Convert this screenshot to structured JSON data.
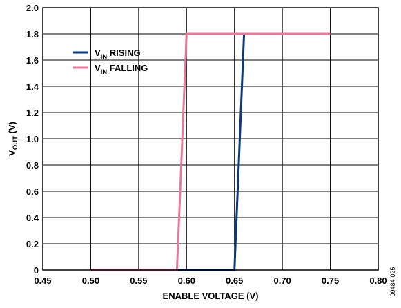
{
  "chart_data": {
    "type": "line",
    "xlabel": "ENABLE VOLTAGE (V)",
    "ylabel": {
      "main": "V",
      "sub": "OUT",
      "unit": " (V)"
    },
    "xlim": [
      0.45,
      0.8
    ],
    "ylim": [
      0,
      2.0
    ],
    "x_ticks": [
      "0.45",
      "0.50",
      "0.55",
      "0.60",
      "0.65",
      "0.70",
      "0.75",
      "0.80"
    ],
    "y_ticks": [
      "0",
      "0.2",
      "0.4",
      "0.6",
      "0.8",
      "1.0",
      "1.2",
      "1.4",
      "1.6",
      "1.8",
      "2.0"
    ],
    "grid": true,
    "legend_position": "top-left",
    "series": [
      {
        "name": "V_IN RISING",
        "label_main": "V",
        "label_sub": "IN",
        "label_rest": " RISING",
        "color": "#0a3a7a",
        "x": [
          0.5,
          0.65,
          0.66,
          0.75
        ],
        "y": [
          0,
          0,
          1.8,
          1.8
        ]
      },
      {
        "name": "V_IN FALLING",
        "label_main": "V",
        "label_sub": "IN",
        "label_rest": " FALLING",
        "color": "#e8799a",
        "x": [
          0.5,
          0.59,
          0.6,
          0.75
        ],
        "y": [
          0,
          0,
          1.8,
          1.8
        ]
      }
    ]
  },
  "figure_code": "09484-025"
}
